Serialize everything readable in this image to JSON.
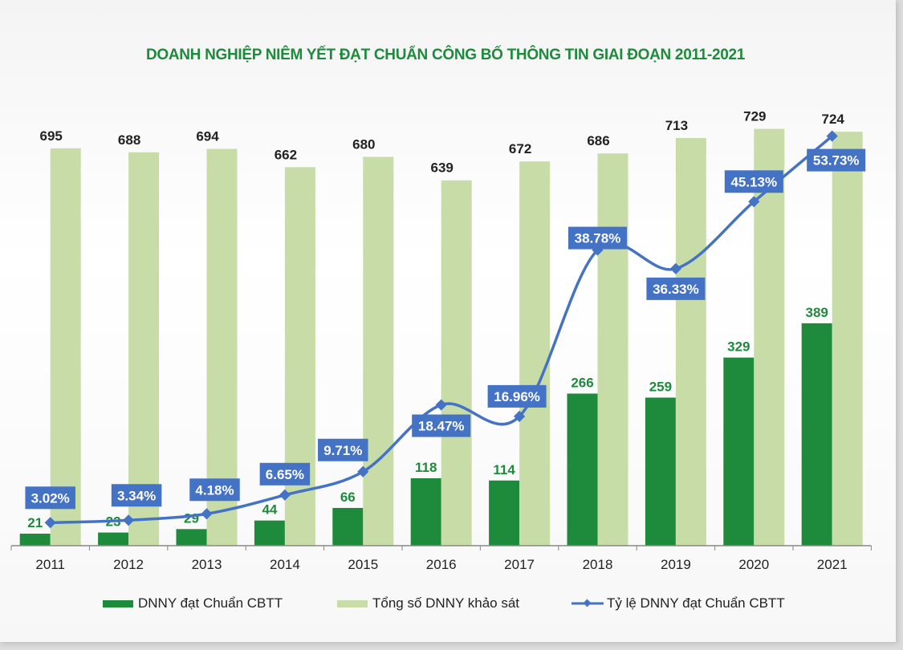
{
  "chart_data": {
    "type": "bar+line",
    "title": "DOANH NGHIỆP NIÊM YẾT ĐẠT CHUẨN CÔNG BỐ THÔNG TIN GIAI ĐOẠN 2011-2021",
    "categories": [
      "2011",
      "2012",
      "2013",
      "2014",
      "2015",
      "2016",
      "2017",
      "2018",
      "2019",
      "2020",
      "2021"
    ],
    "series": [
      {
        "name": "DNNY đạt Chuẩn CBTT",
        "type": "bar",
        "color": "#1e8a3c",
        "values": [
          21,
          23,
          29,
          44,
          66,
          118,
          114,
          266,
          259,
          329,
          389
        ]
      },
      {
        "name": "Tổng số DNNY khảo sát",
        "type": "bar",
        "color": "#c8dca8",
        "values": [
          695,
          688,
          694,
          662,
          680,
          639,
          672,
          686,
          713,
          729,
          724
        ]
      },
      {
        "name": "Tỷ lệ DNNY đạt Chuẩn CBTT",
        "type": "line",
        "axis": "secondary",
        "color": "#4472c4",
        "values": [
          3.02,
          3.34,
          4.18,
          6.65,
          9.71,
          18.47,
          16.96,
          38.78,
          36.33,
          45.13,
          53.73
        ],
        "labels": [
          "3.02%",
          "3.34%",
          "4.18%",
          "6.65%",
          "9.71%",
          "18.47%",
          "16.96%",
          "38.78%",
          "36.33%",
          "45.13%",
          "53.73%"
        ]
      }
    ],
    "ylim": [
      0,
      800
    ],
    "y2lim": [
      0,
      60
    ],
    "grid": false,
    "legend": "bottom"
  }
}
